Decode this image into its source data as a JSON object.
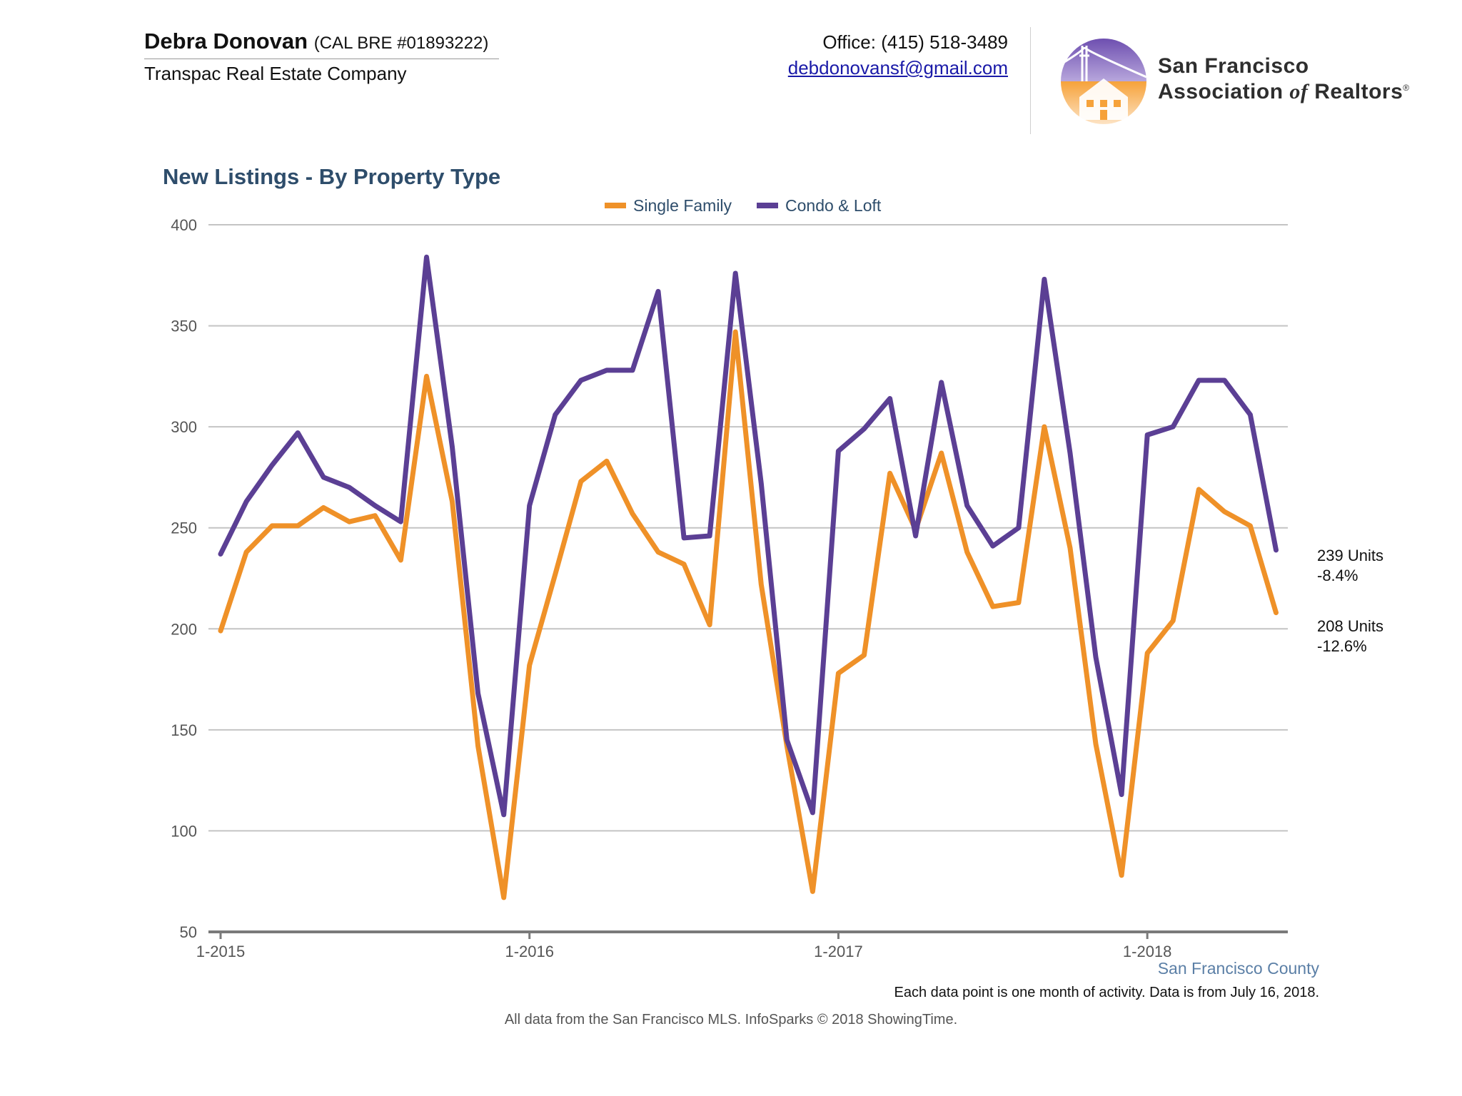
{
  "header": {
    "agent_name": "Debra Donovan",
    "agent_license": "(CAL BRE #01893222)",
    "company": "Transpac Real Estate Company",
    "office_phone": "Office: (415) 518-3489",
    "email": "debdonovansf@gmail.com",
    "association_line1": "San Francisco",
    "association_line2_a": "Association",
    "association_line2_b": "of",
    "association_line2_c": "Realtors",
    "association_mark": "®",
    "logo_icon": "golden-gate-bridge-house-logo"
  },
  "colors": {
    "single_family": "#ef9128",
    "condo_loft": "#5b3f94",
    "title": "#2e4d6b",
    "gridline": "#c4c4c4",
    "axis": "#7a7a7a",
    "tick_label": "#555555",
    "county_label": "#5b7fa6"
  },
  "chart_data": {
    "type": "line",
    "title": "New Listings - By Property Type",
    "xlabel": "",
    "ylabel": "",
    "ylim": [
      50,
      400
    ],
    "yticks": [
      50,
      100,
      150,
      200,
      250,
      300,
      350,
      400
    ],
    "grid": true,
    "legend_placement": "top-center",
    "x": [
      "1-2015",
      "2-2015",
      "3-2015",
      "4-2015",
      "5-2015",
      "6-2015",
      "7-2015",
      "8-2015",
      "9-2015",
      "10-2015",
      "11-2015",
      "12-2015",
      "1-2016",
      "2-2016",
      "3-2016",
      "4-2016",
      "5-2016",
      "6-2016",
      "7-2016",
      "8-2016",
      "9-2016",
      "10-2016",
      "11-2016",
      "12-2016",
      "1-2017",
      "2-2017",
      "3-2017",
      "4-2017",
      "5-2017",
      "6-2017",
      "7-2017",
      "8-2017",
      "9-2017",
      "10-2017",
      "11-2017",
      "12-2017",
      "1-2018",
      "2-2018",
      "3-2018",
      "4-2018",
      "5-2018",
      "6-2018"
    ],
    "xtick_labels": [
      "1-2015",
      "1-2016",
      "1-2017",
      "1-2018"
    ],
    "xtick_indices": [
      0,
      12,
      24,
      36
    ],
    "series": [
      {
        "name": "Single Family",
        "color": "#ef9128",
        "values": [
          199,
          238,
          251,
          251,
          260,
          253,
          256,
          234,
          325,
          263,
          142,
          67,
          182,
          227,
          273,
          283,
          257,
          238,
          232,
          202,
          347,
          222,
          142,
          70,
          178,
          187,
          277,
          249,
          287,
          238,
          211,
          213,
          300,
          240,
          143,
          78,
          188,
          204,
          269,
          258,
          251,
          208
        ]
      },
      {
        "name": "Condo & Loft",
        "color": "#5b3f94",
        "values": [
          237,
          263,
          281,
          297,
          275,
          270,
          261,
          253,
          384,
          290,
          168,
          108,
          261,
          306,
          323,
          328,
          328,
          367,
          245,
          246,
          376,
          272,
          145,
          109,
          288,
          299,
          314,
          246,
          322,
          261,
          241,
          250,
          373,
          287,
          186,
          118,
          296,
          300,
          323,
          323,
          306,
          239
        ]
      }
    ],
    "end_annotations": [
      {
        "series": "Condo & Loft",
        "line1": "239 Units",
        "line2": "-8.4%"
      },
      {
        "series": "Single Family",
        "line1": "208 Units",
        "line2": "-12.6%"
      }
    ]
  },
  "footer": {
    "county": "San Francisco County",
    "period_note": "Each data point is one month of activity. Data is from July 16, 2018.",
    "source": "All data from the San Francisco MLS. InfoSparks © 2018 ShowingTime."
  }
}
